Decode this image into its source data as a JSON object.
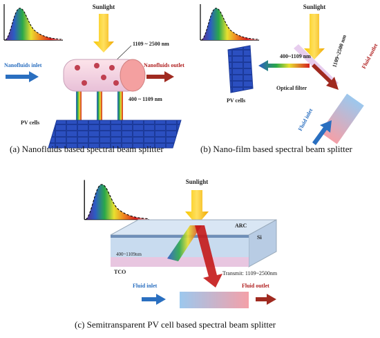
{
  "panels": [
    {
      "caption": "(a)  Nanofluids based spectral beam splitter",
      "labels": [
        "Sunlight",
        "1109 ~ 2500 nm",
        "Nanofluids inlet",
        "Nanofluids outlet",
        "400 ~ 1109 nm",
        "PV cells"
      ]
    },
    {
      "caption": "(b) Nano-film based spectral beam splitter",
      "labels": [
        "Sunlight",
        "400~1109 nm",
        "1109~2500 nm",
        "Fluid outlet",
        "PV cells",
        "Optical filter",
        "Fluid inlet"
      ]
    },
    {
      "caption": "(c) Semitransparent PV cell based spectral beam splitter",
      "labels": [
        "Sunlight",
        "ARC",
        "Si",
        "400~1109nm",
        "TCO",
        "Transmit: 1109~2500nm",
        "Fluid inlet",
        "Fluid outlet"
      ]
    }
  ]
}
